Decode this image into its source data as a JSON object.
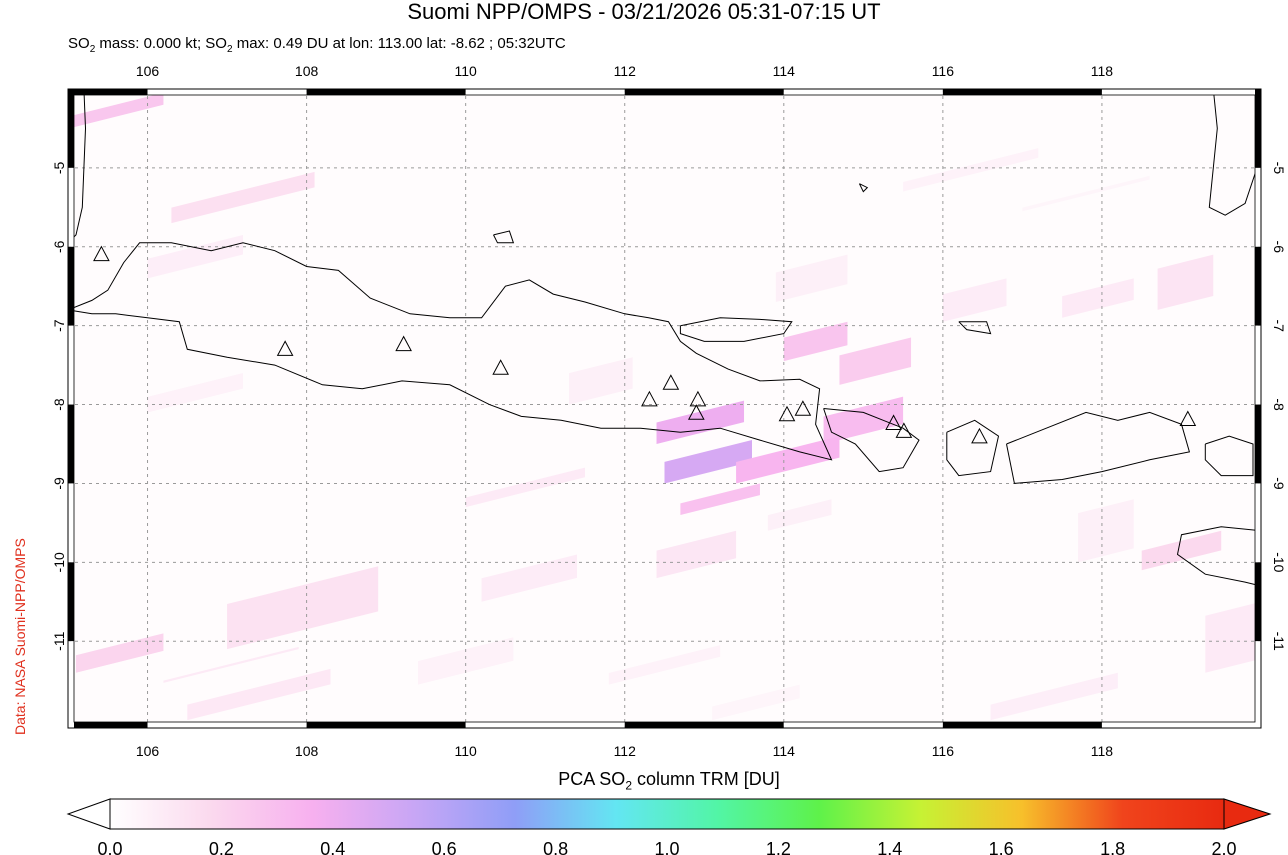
{
  "title": "Suomi NPP/OMPS - 03/21/2026 05:31-07:15 UT",
  "subtitle": {
    "p1": "SO",
    "s1": "2",
    "p2": " mass: 0.000 kt; SO",
    "s2": "2",
    "p3": " max: 0.49 DU at lon: 113.00 lat: -8.62 ; 05:32UTC"
  },
  "credit": "Data: NASA Suomi-NPP/OMPS",
  "colorbar": {
    "title_p1": "PCA SO",
    "title_sub": "2",
    "title_p2": " column TRM [DU]",
    "tick_labels": [
      "0.0",
      "0.2",
      "0.4",
      "0.6",
      "0.8",
      "1.0",
      "1.2",
      "1.4",
      "1.6",
      "1.8",
      "2.0"
    ],
    "colors": [
      "#ffffff",
      "#fbd9ee",
      "#f7b0ef",
      "#c8a6f5",
      "#8f9ef7",
      "#63e6f2",
      "#52f5a6",
      "#5ef24a",
      "#c6f234",
      "#f7c02b",
      "#f0441c",
      "#e82a10"
    ]
  },
  "map": {
    "lon_range": [
      105,
      120
    ],
    "lat_range": [
      -12.1,
      -4
    ],
    "lon_ticks": [
      106,
      108,
      110,
      112,
      114,
      116,
      118
    ],
    "lon_tick_labels": [
      "106",
      "108",
      "110",
      "112",
      "114",
      "116",
      "118"
    ],
    "lat_ticks": [
      -5,
      -6,
      -7,
      -8,
      -9,
      -10,
      -11
    ],
    "lat_tick_labels": [
      "-5",
      "-6",
      "-7",
      "-8",
      "-9",
      "-10",
      "-11"
    ],
    "coastline_color": "#000000",
    "grid_color": "#9a9a9a",
    "volcanoes": [
      {
        "lon": 105.42,
        "lat": -6.1
      },
      {
        "lon": 107.73,
        "lat": -7.3
      },
      {
        "lon": 109.22,
        "lat": -7.24
      },
      {
        "lon": 110.44,
        "lat": -7.54
      },
      {
        "lon": 112.31,
        "lat": -7.94
      },
      {
        "lon": 112.58,
        "lat": -7.73
      },
      {
        "lon": 112.92,
        "lat": -7.94
      },
      {
        "lon": 112.9,
        "lat": -8.11
      },
      {
        "lon": 114.04,
        "lat": -8.13
      },
      {
        "lon": 114.24,
        "lat": -8.06
      },
      {
        "lon": 115.38,
        "lat": -8.24
      },
      {
        "lon": 115.51,
        "lat": -8.34
      },
      {
        "lon": 116.46,
        "lat": -8.41
      },
      {
        "lon": 119.08,
        "lat": -8.19
      }
    ],
    "so2_pixels": [
      {
        "lon": [
          105.0,
          106.2
        ],
        "lat": [
          -4.2,
          -4.35
        ],
        "value": 0.26
      },
      {
        "lon": [
          106.3,
          108.1
        ],
        "lat": [
          -5.05,
          -5.7
        ],
        "value": 0.15
      },
      {
        "lon": [
          106.0,
          107.2
        ],
        "lat": [
          -5.85,
          -6.4
        ],
        "value": 0.08
      },
      {
        "lon": [
          115.5,
          117.2
        ],
        "lat": [
          -4.75,
          -5.3
        ],
        "value": 0.06
      },
      {
        "lon": [
          117.0,
          118.6
        ],
        "lat": [
          -5.1,
          -5.55
        ],
        "value": 0.05
      },
      {
        "lon": [
          113.9,
          114.8
        ],
        "lat": [
          -6.1,
          -6.7
        ],
        "value": 0.07
      },
      {
        "lon": [
          116.0,
          116.8
        ],
        "lat": [
          -6.4,
          -6.95
        ],
        "value": 0.09
      },
      {
        "lon": [
          117.5,
          118.4
        ],
        "lat": [
          -6.4,
          -6.9
        ],
        "value": 0.1
      },
      {
        "lon": [
          118.7,
          119.4
        ],
        "lat": [
          -6.1,
          -6.8
        ],
        "value": 0.13
      },
      {
        "lon": [
          114.0,
          114.8
        ],
        "lat": [
          -6.95,
          -7.45
        ],
        "value": 0.27
      },
      {
        "lon": [
          114.7,
          115.6
        ],
        "lat": [
          -7.15,
          -7.75
        ],
        "value": 0.24
      },
      {
        "lon": [
          114.5,
          115.5
        ],
        "lat": [
          -7.9,
          -8.5
        ],
        "value": 0.31
      },
      {
        "lon": [
          112.4,
          113.5
        ],
        "lat": [
          -7.95,
          -8.5
        ],
        "value": 0.4
      },
      {
        "lon": [
          112.5,
          113.6
        ],
        "lat": [
          -8.45,
          -9.0
        ],
        "value": 0.49
      },
      {
        "lon": [
          113.4,
          114.7
        ],
        "lat": [
          -8.4,
          -9.0
        ],
        "value": 0.34
      },
      {
        "lon": [
          112.7,
          113.7
        ],
        "lat": [
          -9.0,
          -9.4
        ],
        "value": 0.29
      },
      {
        "lon": [
          110.0,
          111.5
        ],
        "lat": [
          -8.8,
          -9.3
        ],
        "value": 0.1
      },
      {
        "lon": [
          106.0,
          107.2
        ],
        "lat": [
          -7.6,
          -8.1
        ],
        "value": 0.06
      },
      {
        "lon": [
          111.3,
          112.1
        ],
        "lat": [
          -7.4,
          -8.0
        ],
        "value": 0.07
      },
      {
        "lon": [
          112.4,
          113.4
        ],
        "lat": [
          -9.6,
          -10.2
        ],
        "value": 0.12
      },
      {
        "lon": [
          110.2,
          111.4
        ],
        "lat": [
          -9.9,
          -10.5
        ],
        "value": 0.09
      },
      {
        "lon": [
          113.8,
          114.6
        ],
        "lat": [
          -9.2,
          -9.6
        ],
        "value": 0.07
      },
      {
        "lon": [
          117.7,
          118.4
        ],
        "lat": [
          -9.2,
          -10.0
        ],
        "value": 0.07
      },
      {
        "lon": [
          118.5,
          119.5
        ],
        "lat": [
          -9.6,
          -10.1
        ],
        "value": 0.18
      },
      {
        "lon": [
          107.0,
          108.9
        ],
        "lat": [
          -10.05,
          -11.1
        ],
        "value": 0.14
      },
      {
        "lon": [
          105.1,
          106.2
        ],
        "lat": [
          -10.9,
          -11.4
        ],
        "value": 0.2
      },
      {
        "lon": [
          106.2,
          107.9
        ],
        "lat": [
          -11.1,
          -11.5
        ],
        "value": 0.1
      },
      {
        "lon": [
          106.5,
          108.3
        ],
        "lat": [
          -11.35,
          -12.0
        ],
        "value": 0.11
      },
      {
        "lon": [
          109.4,
          110.6
        ],
        "lat": [
          -10.95,
          -11.55
        ],
        "value": 0.06
      },
      {
        "lon": [
          111.8,
          113.2
        ],
        "lat": [
          -11.05,
          -11.55
        ],
        "value": 0.06
      },
      {
        "lon": [
          113.1,
          114.2
        ],
        "lat": [
          -11.55,
          -12.0
        ],
        "value": 0.05
      },
      {
        "lon": [
          116.6,
          118.2
        ],
        "lat": [
          -11.4,
          -12.0
        ],
        "value": 0.08
      },
      {
        "lon": [
          119.3,
          120.0
        ],
        "lat": [
          -10.5,
          -11.4
        ],
        "value": 0.1
      }
    ],
    "coastlines": [
      [
        [
          105.2,
          -4.0
        ],
        [
          105.22,
          -4.5
        ],
        [
          105.2,
          -5.0
        ],
        [
          105.18,
          -5.5
        ],
        [
          105.1,
          -5.85
        ],
        [
          105.0,
          -5.95
        ]
      ],
      [
        [
          105.0,
          -6.8
        ],
        [
          105.3,
          -6.68
        ],
        [
          105.5,
          -6.55
        ],
        [
          105.7,
          -6.2
        ],
        [
          105.9,
          -5.95
        ],
        [
          106.3,
          -5.95
        ],
        [
          106.8,
          -6.05
        ],
        [
          107.2,
          -5.95
        ],
        [
          107.6,
          -6.05
        ],
        [
          108.0,
          -6.25
        ],
        [
          108.4,
          -6.3
        ],
        [
          108.8,
          -6.65
        ],
        [
          109.3,
          -6.85
        ],
        [
          109.8,
          -6.9
        ],
        [
          110.2,
          -6.9
        ],
        [
          110.5,
          -6.5
        ],
        [
          110.8,
          -6.42
        ],
        [
          111.1,
          -6.6
        ],
        [
          111.5,
          -6.7
        ],
        [
          112.0,
          -6.85
        ],
        [
          112.3,
          -6.9
        ],
        [
          112.55,
          -6.95
        ],
        [
          112.7,
          -7.2
        ],
        [
          112.9,
          -7.35
        ],
        [
          113.3,
          -7.55
        ],
        [
          113.7,
          -7.7
        ],
        [
          114.2,
          -7.68
        ],
        [
          114.45,
          -7.8
        ],
        [
          114.4,
          -8.25
        ],
        [
          114.6,
          -8.7
        ],
        [
          114.2,
          -8.6
        ],
        [
          113.7,
          -8.45
        ],
        [
          113.2,
          -8.3
        ],
        [
          112.7,
          -8.35
        ],
        [
          112.2,
          -8.3
        ],
        [
          111.7,
          -8.3
        ],
        [
          111.2,
          -8.2
        ],
        [
          110.7,
          -8.15
        ],
        [
          110.3,
          -8.0
        ],
        [
          109.8,
          -7.75
        ],
        [
          109.2,
          -7.7
        ],
        [
          108.7,
          -7.8
        ],
        [
          108.2,
          -7.75
        ],
        [
          107.6,
          -7.5
        ],
        [
          107.0,
          -7.4
        ],
        [
          106.5,
          -7.3
        ],
        [
          106.4,
          -6.95
        ],
        [
          106.0,
          -6.9
        ],
        [
          105.6,
          -6.85
        ],
        [
          105.3,
          -6.85
        ],
        [
          105.0,
          -6.8
        ]
      ],
      [
        [
          112.7,
          -7.0
        ],
        [
          113.2,
          -6.9
        ],
        [
          113.7,
          -6.92
        ],
        [
          114.1,
          -6.95
        ],
        [
          114.0,
          -7.1
        ],
        [
          113.5,
          -7.2
        ],
        [
          113.0,
          -7.2
        ],
        [
          112.7,
          -7.1
        ],
        [
          112.7,
          -7.0
        ]
      ],
      [
        [
          114.5,
          -8.05
        ],
        [
          115.0,
          -8.1
        ],
        [
          115.5,
          -8.3
        ],
        [
          115.7,
          -8.45
        ],
        [
          115.5,
          -8.8
        ],
        [
          115.2,
          -8.85
        ],
        [
          114.9,
          -8.5
        ],
        [
          114.6,
          -8.35
        ],
        [
          114.5,
          -8.05
        ]
      ],
      [
        [
          116.05,
          -8.35
        ],
        [
          116.4,
          -8.2
        ],
        [
          116.7,
          -8.4
        ],
        [
          116.6,
          -8.85
        ],
        [
          116.2,
          -8.9
        ],
        [
          116.05,
          -8.7
        ],
        [
          116.05,
          -8.35
        ]
      ],
      [
        [
          116.8,
          -8.5
        ],
        [
          117.3,
          -8.3
        ],
        [
          117.8,
          -8.1
        ],
        [
          118.2,
          -8.2
        ],
        [
          118.6,
          -8.1
        ],
        [
          119.0,
          -8.25
        ],
        [
          119.1,
          -8.6
        ],
        [
          118.6,
          -8.7
        ],
        [
          118.0,
          -8.85
        ],
        [
          117.5,
          -8.95
        ],
        [
          116.9,
          -9.0
        ],
        [
          116.8,
          -8.5
        ]
      ],
      [
        [
          119.3,
          -8.5
        ],
        [
          119.6,
          -8.4
        ],
        [
          119.9,
          -8.5
        ],
        [
          119.9,
          -8.9
        ],
        [
          119.5,
          -8.9
        ],
        [
          119.3,
          -8.7
        ],
        [
          119.3,
          -8.5
        ]
      ],
      [
        [
          120.0,
          -9.6
        ],
        [
          119.5,
          -9.55
        ],
        [
          119.0,
          -9.65
        ],
        [
          118.95,
          -9.9
        ],
        [
          119.3,
          -10.15
        ],
        [
          119.8,
          -10.25
        ],
        [
          120.0,
          -10.3
        ]
      ],
      [
        [
          119.4,
          -4.0
        ],
        [
          119.45,
          -4.5
        ],
        [
          119.4,
          -5.0
        ],
        [
          119.35,
          -5.5
        ],
        [
          119.55,
          -5.6
        ],
        [
          119.8,
          -5.45
        ],
        [
          119.95,
          -5.0
        ],
        [
          120.0,
          -4.5
        ]
      ],
      [
        [
          110.35,
          -5.85
        ],
        [
          110.55,
          -5.8
        ],
        [
          110.6,
          -5.95
        ],
        [
          110.4,
          -5.95
        ],
        [
          110.35,
          -5.85
        ]
      ],
      [
        [
          114.95,
          -5.2
        ],
        [
          115.05,
          -5.25
        ],
        [
          115.0,
          -5.3
        ],
        [
          114.95,
          -5.2
        ]
      ],
      [
        [
          116.2,
          -6.95
        ],
        [
          116.55,
          -6.95
        ],
        [
          116.6,
          -7.1
        ],
        [
          116.3,
          -7.05
        ],
        [
          116.2,
          -6.95
        ]
      ]
    ]
  }
}
